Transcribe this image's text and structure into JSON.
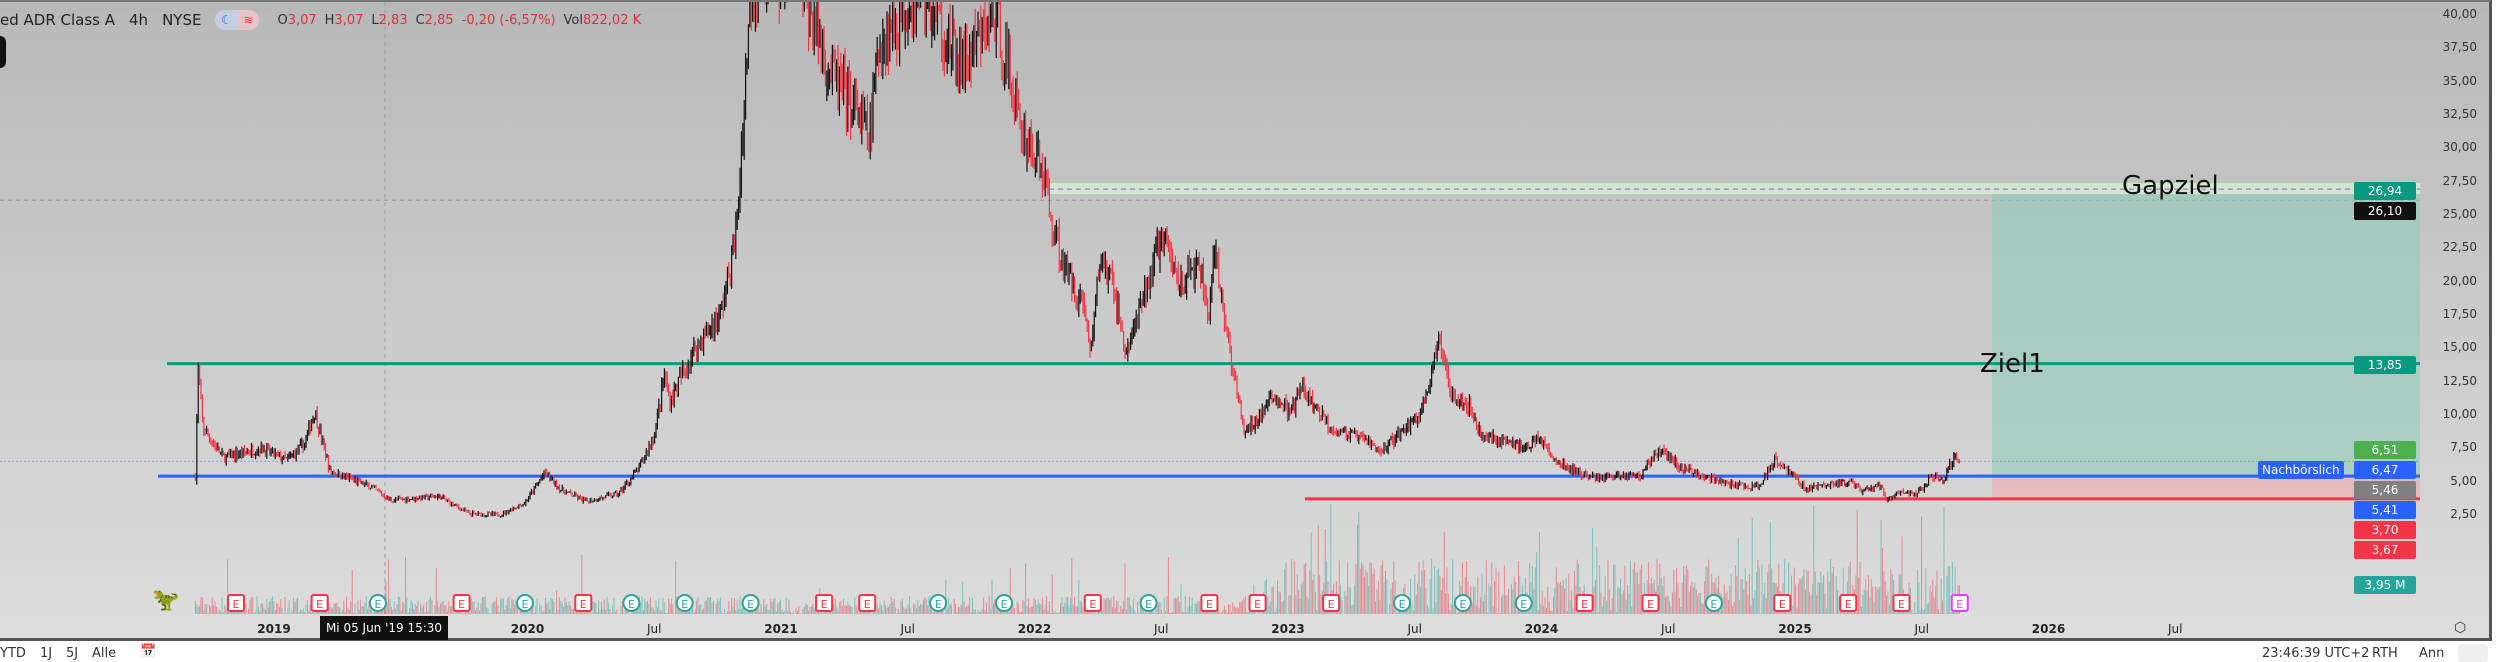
{
  "header": {
    "symbol": "ed ADR Class A",
    "interval": "4h",
    "exchange": "NYSE",
    "ohlc": {
      "o_label": "O",
      "o": "3,07",
      "h_label": "H",
      "h": "3,07",
      "l_label": "L",
      "l": "2,83",
      "c_label": "C",
      "c": "2,85",
      "change": "-0,20 (-6,57%)",
      "vol_label": "Vol",
      "vol": "822,02 K"
    }
  },
  "colors": {
    "up": "#26a69a",
    "down": "#f23645",
    "candle_dark": "#111111",
    "blue_line": "#2962ff",
    "green_line": "#089981",
    "red_line": "#f23645"
  },
  "price_axis": {
    "ticks": [
      "40,00",
      "37,50",
      "35,00",
      "32,50",
      "30,00",
      "27,50",
      "25,00",
      "22,50",
      "20,00",
      "17,50",
      "15,00",
      "12,50",
      "10,00",
      "7,50",
      "5,00",
      "2,50"
    ],
    "tags": [
      {
        "text": "26,94",
        "color": "#089981"
      },
      {
        "text": "26,10",
        "color": "#111111"
      },
      {
        "text": "13,85",
        "color": "#089981"
      },
      {
        "text": "6,51",
        "color": "#4caf50"
      },
      {
        "text": "6,47",
        "color": "#2962ff"
      },
      {
        "text": "5,46",
        "color": "#808080"
      },
      {
        "text": "5,41",
        "color": "#2962ff"
      },
      {
        "text": "3,70",
        "color": "#f23645"
      },
      {
        "text": "3,67",
        "color": "#f23645"
      },
      {
        "text": "3,95 M",
        "color": "#26a69a"
      }
    ],
    "after_hours_label": "Nachbörslich"
  },
  "time_axis": {
    "ticks": [
      "2019",
      "2020",
      "Jul",
      "2021",
      "Jul",
      "2022",
      "Jul",
      "2023",
      "Jul",
      "2024",
      "Jul",
      "2025",
      "Jul",
      "2026",
      "Jul"
    ],
    "tick_dates": [
      2019,
      2020,
      2020.5,
      2021,
      2021.5,
      2022,
      2022.5,
      2023,
      2023.5,
      2024,
      2024.5,
      2025,
      2025.5,
      2026,
      2026.5
    ],
    "crosshair_label": "Mi 05 Jun '19   15:30"
  },
  "drawings": {
    "ziel1": {
      "text": "Ziel1",
      "price": 13.85
    },
    "gapziel": {
      "text": "Gapziel",
      "price": 26.94
    },
    "blue_support": 5.41,
    "red_stop": 3.7,
    "crosshair_price": 26.1
  },
  "earnings": {
    "label": "E",
    "events": [
      [
        2018.85,
        "r"
      ],
      [
        2019.18,
        "r"
      ],
      [
        2019.41,
        "g"
      ],
      [
        2019.74,
        "r"
      ],
      [
        2019.99,
        "g"
      ],
      [
        2020.22,
        "r"
      ],
      [
        2020.41,
        "g"
      ],
      [
        2020.62,
        "g"
      ],
      [
        2020.88,
        "g"
      ],
      [
        2021.17,
        "r"
      ],
      [
        2021.34,
        "r"
      ],
      [
        2021.62,
        "g"
      ],
      [
        2021.88,
        "g"
      ],
      [
        2022.23,
        "r"
      ],
      [
        2022.45,
        "g"
      ],
      [
        2022.69,
        "r"
      ],
      [
        2022.88,
        "r"
      ],
      [
        2023.17,
        "r"
      ],
      [
        2023.45,
        "g"
      ],
      [
        2023.69,
        "g"
      ],
      [
        2023.93,
        "g"
      ],
      [
        2024.17,
        "r"
      ],
      [
        2024.43,
        "r"
      ],
      [
        2024.68,
        "g"
      ],
      [
        2024.95,
        "r"
      ],
      [
        2025.21,
        "r"
      ],
      [
        2025.42,
        "r"
      ],
      [
        2025.65,
        "p"
      ]
    ]
  },
  "price_path": [
    [
      2018.69,
      5.4
    ],
    [
      2018.7,
      13.5
    ],
    [
      2018.72,
      9
    ],
    [
      2018.8,
      6.8
    ],
    [
      2018.95,
      7.5
    ],
    [
      2019.05,
      6.6
    ],
    [
      2019.12,
      7.8
    ],
    [
      2019.16,
      10.3
    ],
    [
      2019.22,
      5.8
    ],
    [
      2019.38,
      4.6
    ],
    [
      2019.46,
      3.6
    ],
    [
      2019.65,
      3.9
    ],
    [
      2019.77,
      2.6
    ],
    [
      2019.89,
      2.5
    ],
    [
      2019.99,
      3.4
    ],
    [
      2020.07,
      5.7
    ],
    [
      2020.13,
      4.4
    ],
    [
      2020.23,
      3.5
    ],
    [
      2020.36,
      4.1
    ],
    [
      2020.44,
      6.0
    ],
    [
      2020.5,
      8.5
    ],
    [
      2020.54,
      13
    ],
    [
      2020.56,
      11
    ],
    [
      2020.66,
      15
    ],
    [
      2020.76,
      17.5
    ],
    [
      2020.81,
      22
    ],
    [
      2020.83,
      25
    ],
    [
      2020.85,
      32
    ],
    [
      2020.88,
      42
    ],
    [
      2021.05,
      44
    ],
    [
      2021.19,
      36
    ],
    [
      2021.35,
      31
    ],
    [
      2021.39,
      38
    ],
    [
      2021.55,
      42
    ],
    [
      2021.71,
      36
    ],
    [
      2021.85,
      40
    ],
    [
      2021.94,
      32
    ],
    [
      2022.04,
      28
    ],
    [
      2022.06,
      25
    ],
    [
      2022.12,
      21
    ],
    [
      2022.2,
      18
    ],
    [
      2022.22,
      14.5
    ],
    [
      2022.26,
      22
    ],
    [
      2022.32,
      19
    ],
    [
      2022.36,
      14.5
    ],
    [
      2022.42,
      18
    ],
    [
      2022.5,
      23.5
    ],
    [
      2022.57,
      20
    ],
    [
      2022.65,
      21
    ],
    [
      2022.69,
      17.5
    ],
    [
      2022.71,
      22
    ],
    [
      2022.79,
      12.5
    ],
    [
      2022.83,
      8.5
    ],
    [
      2022.95,
      11.5
    ],
    [
      2023.01,
      10
    ],
    [
      2023.05,
      12
    ],
    [
      2023.17,
      9
    ],
    [
      2023.32,
      8
    ],
    [
      2023.36,
      7.2
    ],
    [
      2023.52,
      10
    ],
    [
      2023.6,
      15.5
    ],
    [
      2023.64,
      12
    ],
    [
      2023.72,
      10.5
    ],
    [
      2023.76,
      8.5
    ],
    [
      2023.95,
      7.5
    ],
    [
      2023.99,
      8.5
    ],
    [
      2024.05,
      6.5
    ],
    [
      2024.19,
      5.3
    ],
    [
      2024.39,
      5.5
    ],
    [
      2024.47,
      7.5
    ],
    [
      2024.55,
      6.0
    ],
    [
      2024.63,
      5.5
    ],
    [
      2024.76,
      4.7
    ],
    [
      2024.86,
      4.6
    ],
    [
      2024.92,
      6.8
    ],
    [
      2024.98,
      5.7
    ],
    [
      2025.04,
      4.5
    ],
    [
      2025.22,
      5.0
    ],
    [
      2025.26,
      4.2
    ],
    [
      2025.34,
      4.7
    ],
    [
      2025.36,
      3.6
    ],
    [
      2025.41,
      4.2
    ],
    [
      2025.47,
      4.0
    ],
    [
      2025.51,
      4.5
    ],
    [
      2025.53,
      5.5
    ],
    [
      2025.59,
      5.0
    ],
    [
      2025.6,
      6.0
    ],
    [
      2025.63,
      6.9
    ],
    [
      2025.65,
      6.5
    ]
  ],
  "bottom_bar": {
    "ranges": [
      "YTD",
      "1J",
      "5J",
      "Alle"
    ],
    "clock": "23:46:39 UTC+2",
    "session": "RTH",
    "adj": "Ann"
  }
}
